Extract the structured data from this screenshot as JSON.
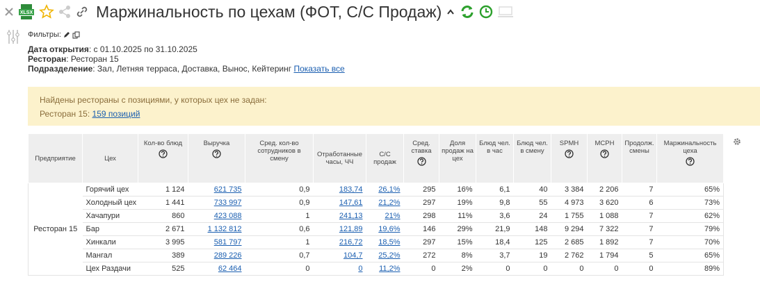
{
  "toolbar": {
    "export_label": "XLSX",
    "title": "Маржинальность по цехам (ФОТ, С/С Продаж)"
  },
  "filters": {
    "label": "Фильтры:",
    "date_label": "Дата открытия",
    "date_value": ": с 01.10.2025 по 31.10.2025",
    "restaurant_label": "Ресторан",
    "restaurant_value": ": Ресторан 15",
    "division_label": "Подразделение",
    "division_value": ": Зал, Летняя терраса, Доставка, Вынос, Кейтеринг",
    "show_all": "Показать все"
  },
  "warning": {
    "text": "Найдены рестораны с позициями, у которых цех не задан:",
    "restaurant": "Ресторан 15:",
    "link": "159 позиций"
  },
  "table": {
    "headers": [
      "Предприятие",
      "Цех",
      "Кол-во блюд",
      "Выручка",
      "Сред. кол-во сотрудников в смену",
      "Отработанные часы, ЧЧ",
      "С/С продаж",
      "Сред. ставка",
      "Доля продаж на цех",
      "Блюд чел. в час",
      "Блюд чел. в смену",
      "SPMH",
      "MCPH",
      "Продолж. смены",
      "Маржинальность цеха"
    ],
    "enterprise": "Ресторан 15",
    "rows": [
      [
        "Горячий цех",
        "1 124",
        "621 735",
        "0,9",
        "183,74",
        "26,1%",
        "295",
        "16%",
        "6,1",
        "40",
        "3 384",
        "2 206",
        "7",
        "65%"
      ],
      [
        "Холодный цех",
        "1 441",
        "733 997",
        "0,9",
        "147,61",
        "21,2%",
        "297",
        "19%",
        "9,8",
        "55",
        "4 973",
        "3 620",
        "6",
        "73%"
      ],
      [
        "Хачапури",
        "860",
        "423 088",
        "1",
        "241,13",
        "21%",
        "298",
        "11%",
        "3,6",
        "24",
        "1 755",
        "1 088",
        "7",
        "62%"
      ],
      [
        "Бар",
        "2 671",
        "1 132 812",
        "0,6",
        "121,89",
        "19,6%",
        "146",
        "29%",
        "21,9",
        "148",
        "9 294",
        "7 322",
        "7",
        "79%"
      ],
      [
        "Хинкали",
        "3 995",
        "581 797",
        "1",
        "216,72",
        "18,5%",
        "297",
        "15%",
        "18,4",
        "125",
        "2 685",
        "1 892",
        "7",
        "70%"
      ],
      [
        "Мангал",
        "389",
        "289 226",
        "0,7",
        "104,7",
        "25,2%",
        "272",
        "8%",
        "3,7",
        "19",
        "2 762",
        "1 794",
        "5",
        "65%"
      ],
      [
        "Цех Раздачи",
        "525",
        "62 464",
        "0",
        "0",
        "11,2%",
        "0",
        "2%",
        "0",
        "0",
        "0",
        "0",
        "0",
        "89%"
      ]
    ]
  }
}
